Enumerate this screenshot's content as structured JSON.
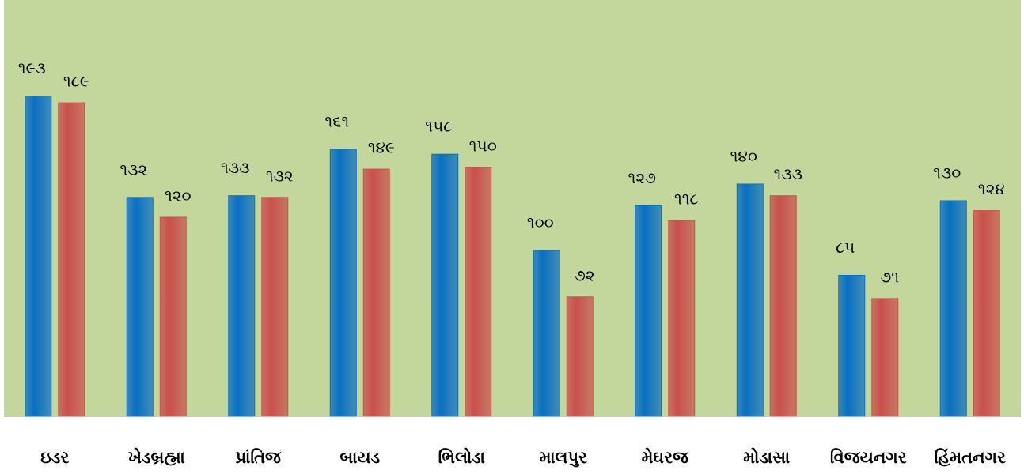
{
  "chart_data": {
    "type": "bar",
    "categories": [
      "ઇડર",
      "ખેડબ્રહ્મા",
      "પ્રાંતિજ",
      "બાયડ",
      "ભિલોડા",
      "માલપુર",
      "મેઘરજ",
      "મોડાસા",
      "વિજયનગર",
      "હિંમતનગર"
    ],
    "series": [
      {
        "color": "#0a6fc2",
        "values": [
          193,
          132,
          133,
          161,
          158,
          100,
          127,
          140,
          85,
          130
        ],
        "value_labels": [
          "૧૯૩",
          "૧૩૨",
          "૧૩૩",
          "૧૬૧",
          "૧૫૮",
          "૧૦૦",
          "૧૨૭",
          "૧૪૦",
          "૮૫",
          "૧૩૦"
        ]
      },
      {
        "color": "#c9504d",
        "values": [
          189,
          120,
          132,
          149,
          150,
          72,
          118,
          133,
          71,
          124
        ],
        "value_labels": [
          "૧૮૯",
          "૧૨૦",
          "૧૩૨",
          "૧૪૯",
          "૧૫૦",
          "૭૨",
          "૧૧૮",
          "૧૩૩",
          "૭૧",
          "૧૨૪"
        ]
      }
    ],
    "ylim": [
      0,
      250
    ]
  }
}
